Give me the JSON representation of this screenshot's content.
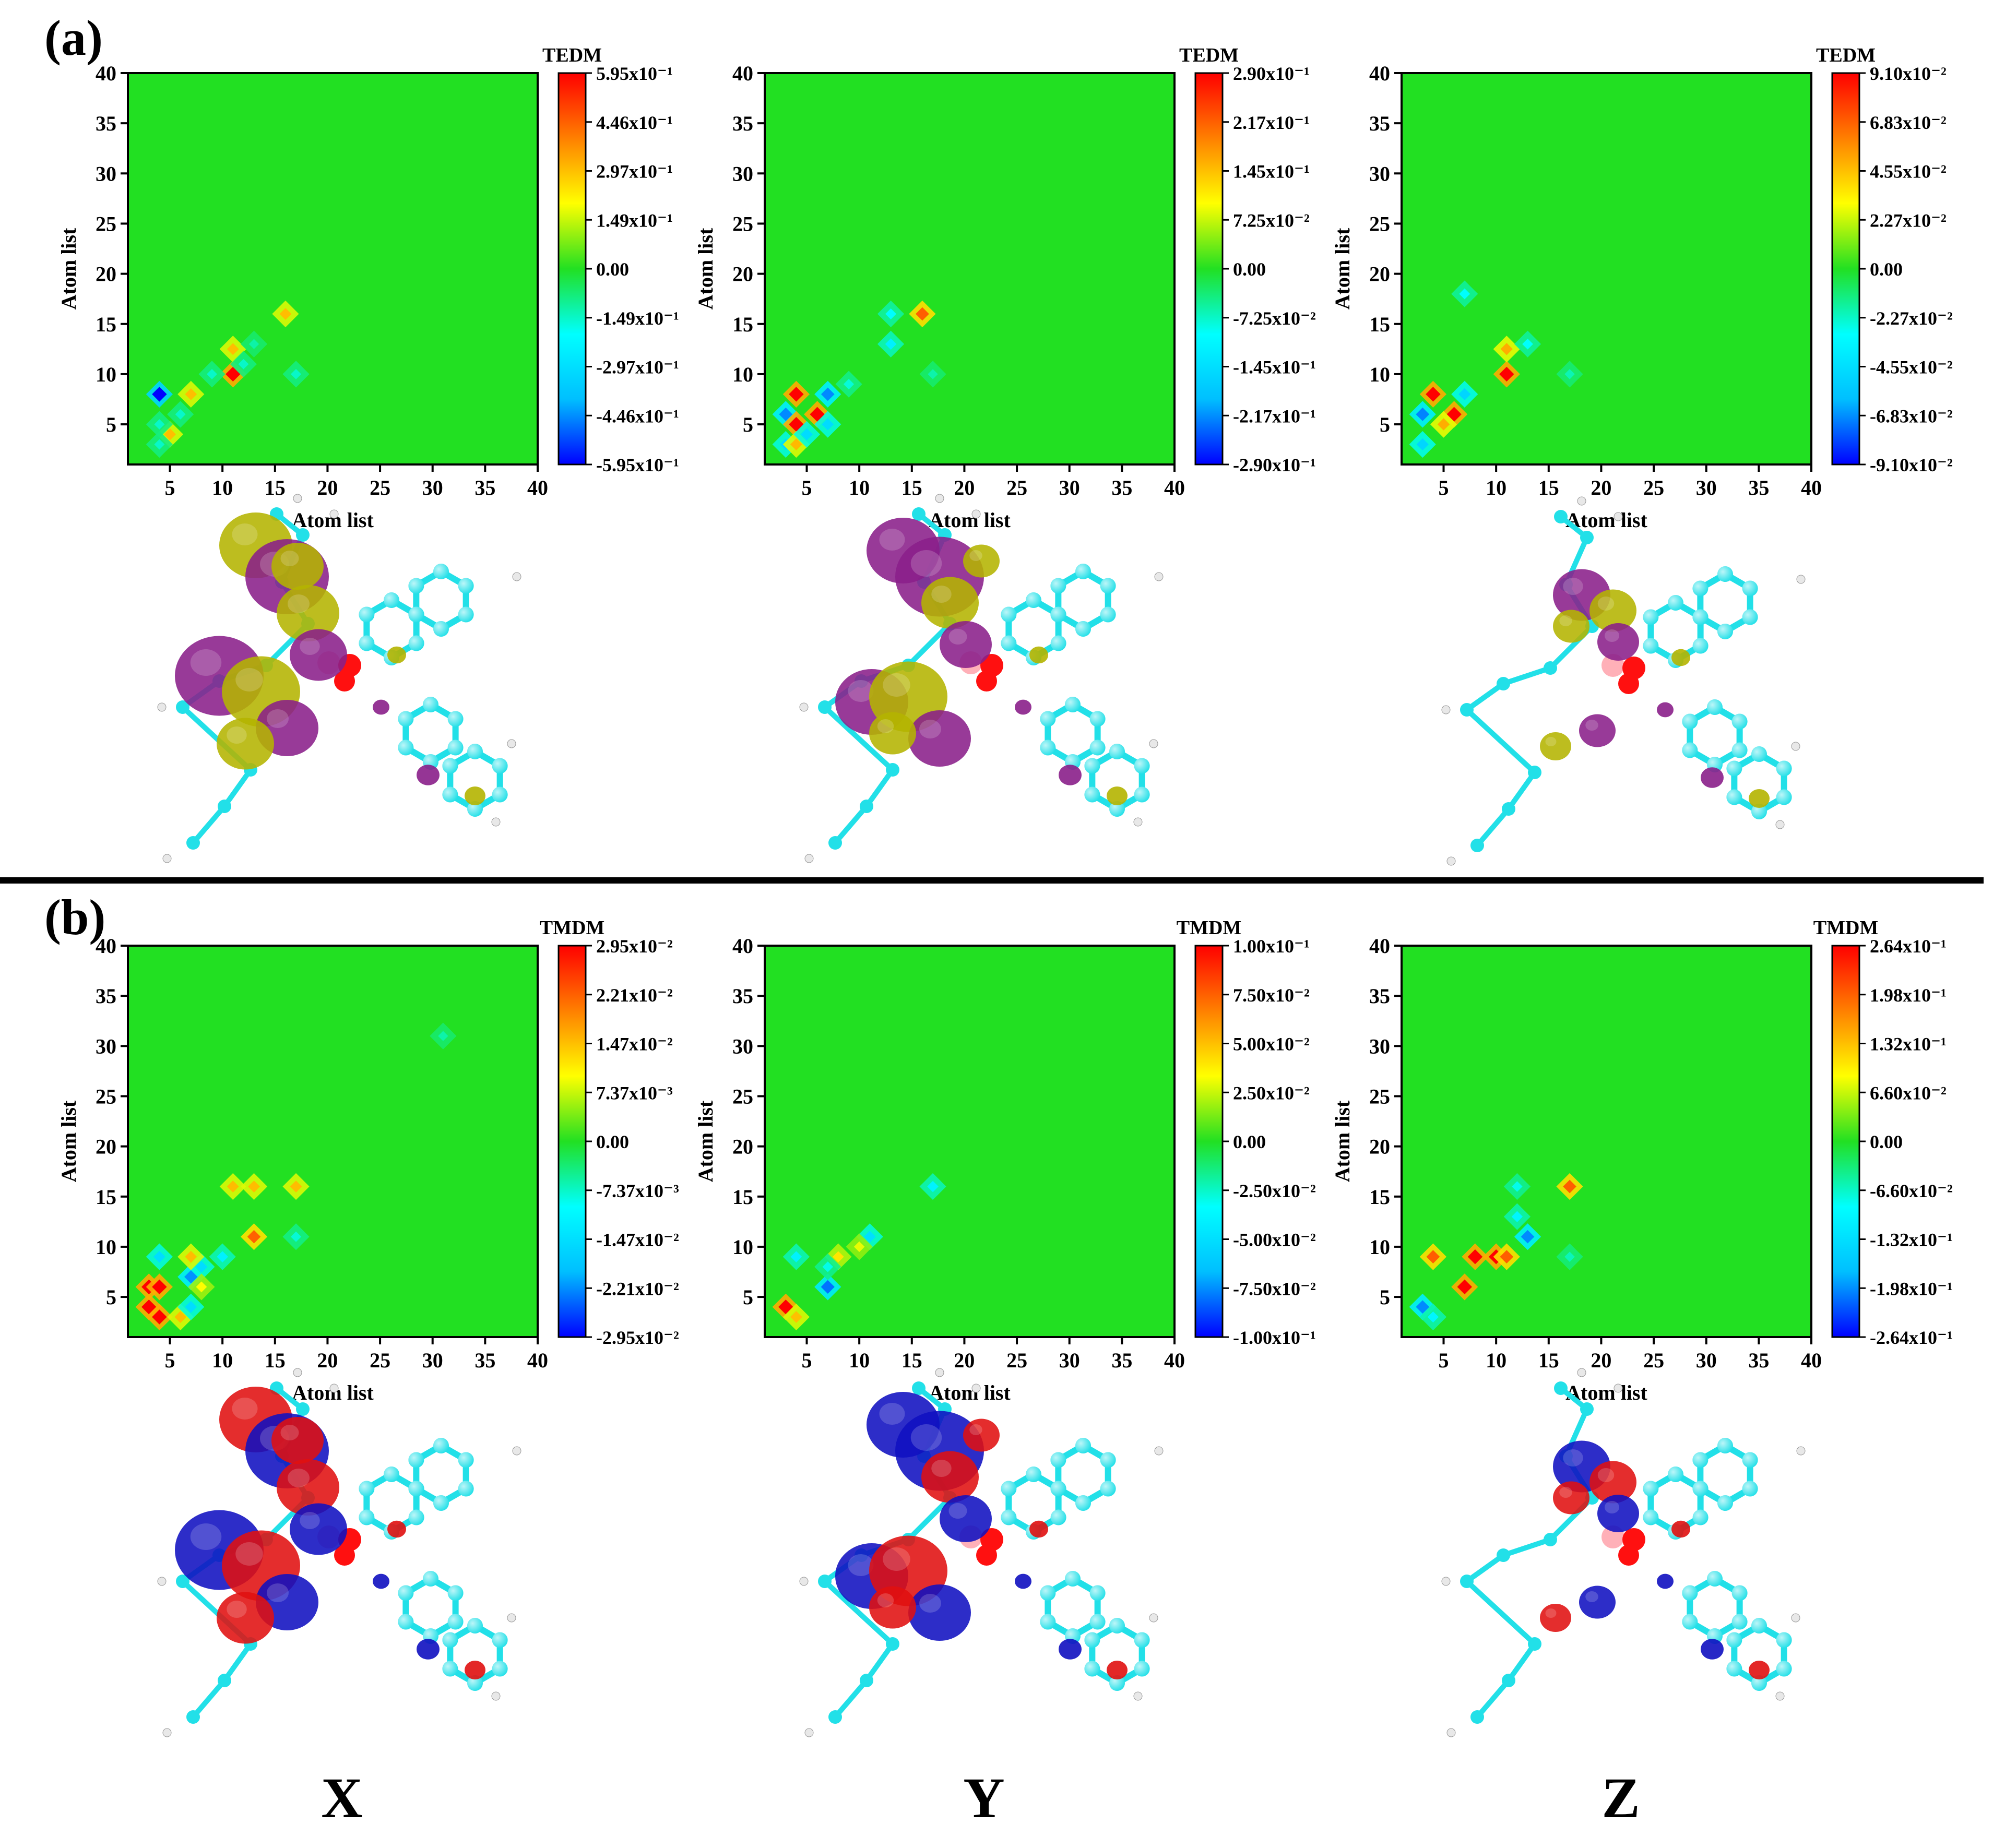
{
  "panel_labels": [
    "(a)",
    "(b)"
  ],
  "component_labels": [
    "X",
    "Y",
    "Z"
  ],
  "colors": {
    "background_field": "#22e022",
    "colormap": [
      "#0000ff",
      "#00bfff",
      "#00ffff",
      "#22e022",
      "#ffff00",
      "#ff8000",
      "#ff0000"
    ],
    "iso_a_positive": "#b4b400",
    "iso_a_negative": "#8a1f8a",
    "iso_b_positive": "#e01010",
    "iso_b_negative": "#1010c0",
    "atom_carbon": "#22e0e8",
    "atom_oxygen": "#ff1010",
    "atom_boron": "#ffb0b8",
    "atom_hydrogen": "#e8e8e8"
  },
  "icons": [
    "molecule-isosurface-graphic"
  ],
  "chart_data": [
    {
      "type": "heatmap",
      "panel": "(a)",
      "component": "X",
      "colorbar_title": "TEDM",
      "xlabel": "Atom list",
      "ylabel": "Atom list",
      "xlim": [
        1,
        40
      ],
      "ylim": [
        1,
        40
      ],
      "xticks": [
        5,
        10,
        15,
        20,
        25,
        30,
        35,
        40
      ],
      "yticks": [
        5,
        10,
        15,
        20,
        25,
        30,
        35,
        40
      ],
      "colorbar_ticks": [
        "5.95x10⁻¹",
        "4.46x10⁻¹",
        "2.97x10⁻¹",
        "1.49x10⁻¹",
        "0.00",
        "-1.49x10⁻¹",
        "-2.97x10⁻¹",
        "-4.46x10⁻¹",
        "-5.95x10⁻¹"
      ],
      "vmax": 0.595,
      "hotspots": [
        {
          "x": 4,
          "y": 8,
          "v": -0.595
        },
        {
          "x": 5,
          "y": 4,
          "v": 0.3
        },
        {
          "x": 4,
          "y": 5,
          "v": -0.15
        },
        {
          "x": 7,
          "y": 8,
          "v": 0.3
        },
        {
          "x": 11,
          "y": 10,
          "v": 0.595
        },
        {
          "x": 11,
          "y": 12.5,
          "v": 0.3
        },
        {
          "x": 9,
          "y": 10,
          "v": -0.15
        },
        {
          "x": 12,
          "y": 11,
          "v": -0.15
        },
        {
          "x": 13,
          "y": 13,
          "v": -0.12
        },
        {
          "x": 16,
          "y": 16,
          "v": 0.3
        },
        {
          "x": 17,
          "y": 10,
          "v": -0.15
        },
        {
          "x": 4,
          "y": 3,
          "v": -0.15
        },
        {
          "x": 6,
          "y": 6,
          "v": -0.15
        }
      ]
    },
    {
      "type": "heatmap",
      "panel": "(a)",
      "component": "Y",
      "colorbar_title": "TEDM",
      "xlabel": "Atom list",
      "ylabel": "Atom list",
      "xlim": [
        1,
        40
      ],
      "ylim": [
        1,
        40
      ],
      "xticks": [
        5,
        10,
        15,
        20,
        25,
        30,
        35,
        40
      ],
      "yticks": [
        5,
        10,
        15,
        20,
        25,
        30,
        35,
        40
      ],
      "colorbar_ticks": [
        "2.90x10⁻¹",
        "2.17x10⁻¹",
        "1.45x10⁻¹",
        "7.25x10⁻²",
        "0.00",
        "-7.25x10⁻²",
        "-1.45x10⁻¹",
        "-2.17x10⁻¹",
        "-2.90x10⁻¹"
      ],
      "vmax": 0.29,
      "hotspots": [
        {
          "x": 4,
          "y": 8,
          "v": 0.29
        },
        {
          "x": 3,
          "y": 6,
          "v": -0.22
        },
        {
          "x": 4,
          "y": 5,
          "v": 0.29
        },
        {
          "x": 6,
          "y": 6,
          "v": 0.29
        },
        {
          "x": 7,
          "y": 8,
          "v": -0.22
        },
        {
          "x": 3,
          "y": 3,
          "v": -0.15
        },
        {
          "x": 4,
          "y": 3,
          "v": 0.15
        },
        {
          "x": 5,
          "y": 4,
          "v": -0.15
        },
        {
          "x": 7,
          "y": 5,
          "v": -0.15
        },
        {
          "x": 16,
          "y": 16,
          "v": 0.22
        },
        {
          "x": 13,
          "y": 13,
          "v": -0.12
        },
        {
          "x": 13,
          "y": 16,
          "v": -0.1
        },
        {
          "x": 9,
          "y": 9,
          "v": -0.08
        },
        {
          "x": 17,
          "y": 10,
          "v": -0.06
        }
      ]
    },
    {
      "type": "heatmap",
      "panel": "(a)",
      "component": "Z",
      "colorbar_title": "TEDM",
      "xlabel": "Atom list",
      "ylabel": "Atom list",
      "xlim": [
        1,
        40
      ],
      "ylim": [
        1,
        40
      ],
      "xticks": [
        5,
        10,
        15,
        20,
        25,
        30,
        35,
        40
      ],
      "yticks": [
        5,
        10,
        15,
        20,
        25,
        30,
        35,
        40
      ],
      "colorbar_ticks": [
        "9.10x10⁻²",
        "6.83x10⁻²",
        "4.55x10⁻²",
        "2.27x10⁻²",
        "0.00",
        "-2.27x10⁻²",
        "-4.55x10⁻²",
        "-6.83x10⁻²",
        "-9.10x10⁻²"
      ],
      "vmax": 0.091,
      "hotspots": [
        {
          "x": 4,
          "y": 8,
          "v": 0.091
        },
        {
          "x": 3,
          "y": 6,
          "v": -0.07
        },
        {
          "x": 6,
          "y": 6,
          "v": 0.091
        },
        {
          "x": 7,
          "y": 8,
          "v": -0.05
        },
        {
          "x": 3,
          "y": 3,
          "v": -0.05
        },
        {
          "x": 5,
          "y": 5,
          "v": 0.05
        },
        {
          "x": 11,
          "y": 10,
          "v": 0.091
        },
        {
          "x": 11,
          "y": 12.5,
          "v": 0.05
        },
        {
          "x": 13,
          "y": 13,
          "v": -0.03
        },
        {
          "x": 7,
          "y": 18,
          "v": -0.03
        },
        {
          "x": 17,
          "y": 10,
          "v": -0.02
        }
      ]
    },
    {
      "type": "heatmap",
      "panel": "(b)",
      "component": "X",
      "colorbar_title": "TMDM",
      "xlabel": "Atom list",
      "ylabel": "Atom list",
      "xlim": [
        1,
        40
      ],
      "ylim": [
        1,
        40
      ],
      "xticks": [
        5,
        10,
        15,
        20,
        25,
        30,
        35,
        40
      ],
      "yticks": [
        5,
        10,
        15,
        20,
        25,
        30,
        35,
        40
      ],
      "colorbar_ticks": [
        "2.95x10⁻²",
        "2.21x10⁻²",
        "1.47x10⁻²",
        "7.37x10⁻³",
        "0.00",
        "-7.37x10⁻³",
        "-1.47x10⁻²",
        "-2.21x10⁻²",
        "-2.95x10⁻²"
      ],
      "vmax": 0.0295,
      "hotspots": [
        {
          "x": 3,
          "y": 6,
          "v": 0.0295
        },
        {
          "x": 4,
          "y": 6,
          "v": 0.0295
        },
        {
          "x": 3,
          "y": 4,
          "v": 0.0295
        },
        {
          "x": 4,
          "y": 3,
          "v": 0.0295
        },
        {
          "x": 4,
          "y": 9,
          "v": -0.015
        },
        {
          "x": 7,
          "y": 7,
          "v": -0.022
        },
        {
          "x": 8,
          "y": 8,
          "v": -0.015
        },
        {
          "x": 7,
          "y": 9,
          "v": 0.015
        },
        {
          "x": 6,
          "y": 3,
          "v": 0.015
        },
        {
          "x": 7,
          "y": 4,
          "v": -0.015
        },
        {
          "x": 8,
          "y": 6,
          "v": 0.01
        },
        {
          "x": 10,
          "y": 9,
          "v": -0.012
        },
        {
          "x": 11,
          "y": 16,
          "v": 0.015
        },
        {
          "x": 13,
          "y": 16,
          "v": 0.015
        },
        {
          "x": 17,
          "y": 16,
          "v": 0.015
        },
        {
          "x": 13,
          "y": 11,
          "v": 0.022
        },
        {
          "x": 17,
          "y": 11,
          "v": -0.008
        },
        {
          "x": 31,
          "y": 31,
          "v": -0.006
        }
      ]
    },
    {
      "type": "heatmap",
      "panel": "(b)",
      "component": "Y",
      "colorbar_title": "TMDM",
      "xlabel": "Atom list",
      "ylabel": "Atom list",
      "xlim": [
        1,
        40
      ],
      "ylim": [
        1,
        40
      ],
      "xticks": [
        5,
        10,
        15,
        20,
        25,
        30,
        35,
        40
      ],
      "yticks": [
        5,
        10,
        15,
        20,
        25,
        30,
        35,
        40
      ],
      "colorbar_ticks": [
        "1.00x10⁻¹",
        "7.50x10⁻²",
        "5.00x10⁻²",
        "2.50x10⁻²",
        "0.00",
        "-2.50x10⁻²",
        "-5.00x10⁻²",
        "-7.50x10⁻²",
        "-1.00x10⁻¹"
      ],
      "vmax": 0.1,
      "hotspots": [
        {
          "x": 3,
          "y": 4,
          "v": 0.1
        },
        {
          "x": 4,
          "y": 3,
          "v": 0.05
        },
        {
          "x": 7,
          "y": 6,
          "v": -0.08
        },
        {
          "x": 4,
          "y": 9,
          "v": -0.04
        },
        {
          "x": 8,
          "y": 9,
          "v": 0.04
        },
        {
          "x": 7,
          "y": 8,
          "v": -0.03
        },
        {
          "x": 11,
          "y": 11,
          "v": -0.05
        },
        {
          "x": 10,
          "y": 10,
          "v": 0.03
        },
        {
          "x": 17,
          "y": 16,
          "v": -0.04
        }
      ]
    },
    {
      "type": "heatmap",
      "panel": "(b)",
      "component": "Z",
      "colorbar_title": "TMDM",
      "xlabel": "Atom list",
      "ylabel": "Atom list",
      "xlim": [
        1,
        40
      ],
      "ylim": [
        1,
        40
      ],
      "xticks": [
        5,
        10,
        15,
        20,
        25,
        30,
        35,
        40
      ],
      "yticks": [
        5,
        10,
        15,
        20,
        25,
        30,
        35,
        40
      ],
      "colorbar_ticks": [
        "2.64x10⁻¹",
        "1.98x10⁻¹",
        "1.32x10⁻¹",
        "6.60x10⁻²",
        "0.00",
        "-6.60x10⁻²",
        "-1.32x10⁻¹",
        "-1.98x10⁻¹",
        "-2.64x10⁻¹"
      ],
      "vmax": 0.264,
      "hotspots": [
        {
          "x": 3,
          "y": 4,
          "v": -0.2
        },
        {
          "x": 4,
          "y": 9,
          "v": 0.2
        },
        {
          "x": 4,
          "y": 3,
          "v": -0.1
        },
        {
          "x": 7,
          "y": 6,
          "v": 0.264
        },
        {
          "x": 8,
          "y": 9,
          "v": 0.264
        },
        {
          "x": 10,
          "y": 9,
          "v": 0.264
        },
        {
          "x": 11,
          "y": 9,
          "v": 0.2
        },
        {
          "x": 13,
          "y": 11,
          "v": -0.2
        },
        {
          "x": 12,
          "y": 13,
          "v": -0.1
        },
        {
          "x": 12,
          "y": 16,
          "v": -0.08
        },
        {
          "x": 17,
          "y": 16,
          "v": 0.2
        },
        {
          "x": 17,
          "y": 9,
          "v": -0.06
        }
      ]
    }
  ]
}
